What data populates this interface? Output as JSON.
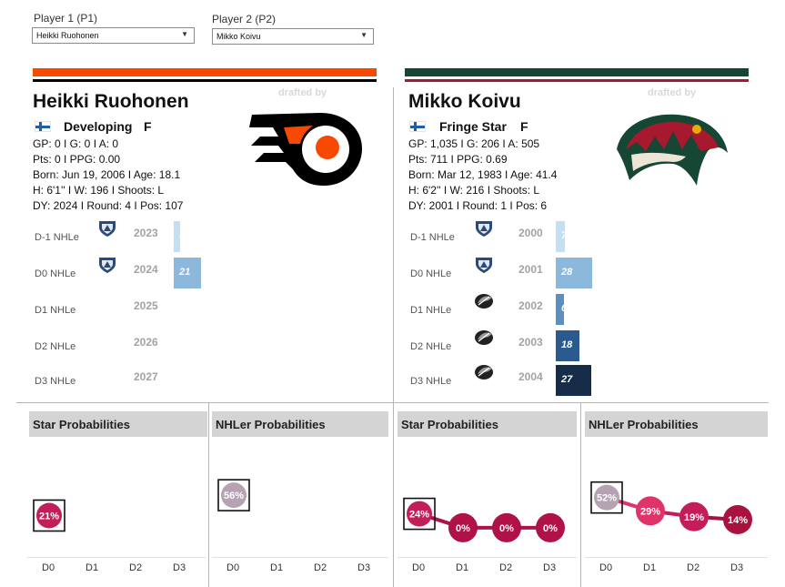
{
  "selectors": {
    "p1": {
      "label": "Player 1 (P1)",
      "value": "Heikki Ruohonen"
    },
    "p2": {
      "label": "Player 2 (P2)",
      "value": "Mikko Koivu"
    }
  },
  "drafted_by_label": "drafted by",
  "players": [
    {
      "name": "Heikki Ruohonen",
      "status": "Developing",
      "position": "F",
      "team_colors": {
        "primary": "#f74902",
        "secondary": "#000000"
      },
      "team_logo": "philadelphia-flyers-logo",
      "stats": {
        "line1": "GP: 0 I G: 0 I A: 0",
        "line2": "Pts: 0 I PPG: 0.00",
        "line3": "Born: Jun 19, 2006 I Age: 18.1",
        "line4": "H: 6'1'' I W: 196 I Shoots: L",
        "line5": "DY: 2024 I Round: 4 I Pos: 107"
      },
      "nhle_rows": [
        {
          "label": "D-1 NHLe",
          "year": "2023",
          "value": 5,
          "value_label": "5",
          "league_logo": "shl-logo",
          "color": "#c5dff2"
        },
        {
          "label": "D0 NHLe",
          "year": "2024",
          "value": 21,
          "value_label": "21",
          "league_logo": "shl-logo",
          "color": "#8cb8dc"
        },
        {
          "label": "D1 NHLe",
          "year": "2025",
          "value": null,
          "value_label": "",
          "league_logo": "",
          "color": ""
        },
        {
          "label": "D2 NHLe",
          "year": "2026",
          "value": null,
          "value_label": "",
          "league_logo": "",
          "color": ""
        },
        {
          "label": "D3 NHLe",
          "year": "2027",
          "value": null,
          "value_label": "",
          "league_logo": "",
          "color": ""
        }
      ],
      "star_probabilities": {
        "title": "Star Probabilities",
        "categories": [
          "D0",
          "D1",
          "D2",
          "D3"
        ],
        "values": [
          21,
          null,
          null,
          null
        ],
        "labels": [
          "21%",
          "",
          "",
          ""
        ]
      },
      "nhler_probabilities": {
        "title": "NHLer Probabilities",
        "categories": [
          "D0",
          "D1",
          "D2",
          "D3"
        ],
        "values": [
          56,
          null,
          null,
          null
        ],
        "labels": [
          "56%",
          "",
          "",
          ""
        ]
      }
    },
    {
      "name": "Mikko Koivu",
      "status": "Fringe Star",
      "position": "F",
      "team_colors": {
        "primary": "#154734",
        "secondary": "#a6192e"
      },
      "team_logo": "minnesota-wild-logo",
      "stats": {
        "line1": "GP: 1,035 I G: 206 I A: 505",
        "line2": "Pts: 711 I PPG: 0.69",
        "line3": "Born: Mar 12, 1983 I Age: 41.4",
        "line4": "H: 6'2'' I W: 216 I Shoots: L",
        "line5": "DY: 2001 I Round: 1 I Pos: 6"
      },
      "nhle_rows": [
        {
          "label": "D-1 NHLe",
          "year": "2000",
          "value": 7,
          "value_label": "7",
          "league_logo": "shl-logo",
          "color": "#c5dff2"
        },
        {
          "label": "D0 NHLe",
          "year": "2001",
          "value": 28,
          "value_label": "28",
          "league_logo": "shl-logo",
          "color": "#8cb8dc"
        },
        {
          "label": "D1 NHLe",
          "year": "2002",
          "value": 6,
          "value_label": "6",
          "league_logo": "liiga-logo",
          "color": "#5b8fc2"
        },
        {
          "label": "D2 NHLe",
          "year": "2003",
          "value": 18,
          "value_label": "18",
          "league_logo": "liiga-logo",
          "color": "#2b5a8f"
        },
        {
          "label": "D3 NHLe",
          "year": "2004",
          "value": 27,
          "value_label": "27",
          "league_logo": "liiga-logo",
          "color": "#172c48"
        }
      ],
      "star_probabilities": {
        "title": "Star Probabilities",
        "categories": [
          "D0",
          "D1",
          "D2",
          "D3"
        ],
        "values": [
          24,
          0,
          0,
          0
        ],
        "labels": [
          "24%",
          "0%",
          "0%",
          "0%"
        ]
      },
      "nhler_probabilities": {
        "title": "NHLer Probabilities",
        "categories": [
          "D0",
          "D1",
          "D2",
          "D3"
        ],
        "values": [
          52,
          29,
          19,
          14
        ],
        "labels": [
          "52%",
          "29%",
          "19%",
          "14%"
        ]
      }
    }
  ],
  "chart_data": [
    {
      "type": "bar",
      "title": "",
      "categories": [
        "2023",
        "2024",
        "2025",
        "2026",
        "2027"
      ],
      "series": [
        {
          "values": [
            5,
            21,
            null,
            null,
            null
          ]
        }
      ]
    },
    {
      "type": "bar",
      "title": "",
      "categories": [
        "2000",
        "2001",
        "2002",
        "2003",
        "2004"
      ],
      "series": [
        {
          "values": [
            7,
            28,
            6,
            18,
            27
          ]
        }
      ]
    },
    {
      "type": "line",
      "title": "Star Probabilities",
      "categories": [
        "D0",
        "D1",
        "D2",
        "D3"
      ],
      "series": [
        {
          "values": [
            21,
            null,
            null,
            null
          ]
        }
      ]
    },
    {
      "type": "line",
      "title": "NHLer Probabilities",
      "categories": [
        "D0",
        "D1",
        "D2",
        "D3"
      ],
      "series": [
        {
          "values": [
            56,
            null,
            null,
            null
          ]
        }
      ]
    },
    {
      "type": "line",
      "title": "Star Probabilities",
      "categories": [
        "D0",
        "D1",
        "D2",
        "D3"
      ],
      "series": [
        {
          "values": [
            24,
            0,
            0,
            0
          ]
        }
      ]
    },
    {
      "type": "line",
      "title": "NHLer Probabilities",
      "categories": [
        "D0",
        "D1",
        "D2",
        "D3"
      ],
      "series": [
        {
          "values": [
            52,
            29,
            19,
            14
          ]
        }
      ]
    }
  ]
}
